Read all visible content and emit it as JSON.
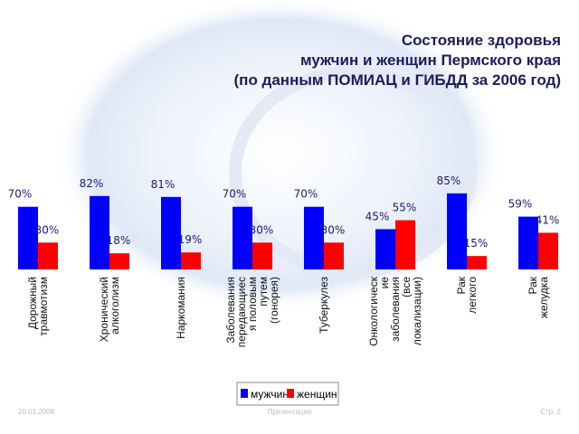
{
  "chart_data": {
    "type": "bar",
    "title": [
      "Состояние здоровья",
      "мужчин и женщин Пермского края",
      "(по данным ПОМИАЦ и ГИБДД за 2006 год)"
    ],
    "categories": [
      [
        "Дорожный",
        "травмотизм"
      ],
      [
        "Хронический",
        "алкоголизм"
      ],
      [
        "Наркомания"
      ],
      [
        "Заболевания",
        "передающиес",
        "я половым",
        "путем",
        "(гонорея)"
      ],
      [
        "Туберкулез"
      ],
      [
        "Онкологическ",
        "ие",
        "заболевания",
        "(все",
        "локализации)"
      ],
      [
        "Рак",
        "легкого"
      ],
      [
        "Рак",
        "желудка"
      ]
    ],
    "series": [
      {
        "name": "мужчин",
        "color": "#0000ff",
        "values": [
          70,
          82,
          81,
          70,
          70,
          45,
          85,
          59
        ],
        "value_labels": [
          "70%",
          "82%",
          "81%",
          "70%",
          "70%",
          "45%",
          "85%",
          "59%"
        ]
      },
      {
        "name": "женщин",
        "color": "#ff0000",
        "values": [
          30,
          18,
          19,
          30,
          30,
          55,
          15,
          41
        ],
        "value_labels": [
          "30%",
          "18%",
          "19%",
          "30%",
          "30%",
          "55%",
          "15%",
          "41%"
        ]
      }
    ],
    "footer": {
      "date": "20.01.2008",
      "center": "Презентация",
      "page": "Стр. 2"
    }
  }
}
